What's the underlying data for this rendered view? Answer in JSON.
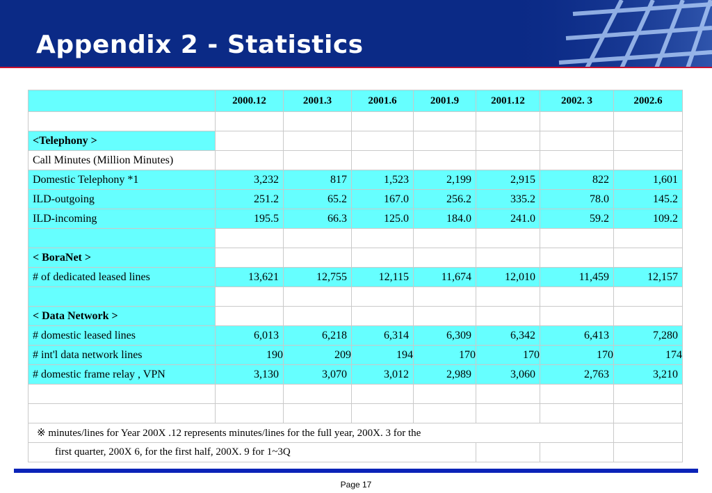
{
  "slide": {
    "title": "Appendix 2 - Statistics",
    "page_label": "Page 17",
    "colors": {
      "banner": "#0b2a86",
      "accent_line": "#c8102e",
      "highlight": "#66ffff",
      "footer_bar": "#0b23b8"
    }
  },
  "table": {
    "columns": [
      "2000.12",
      "2001.3",
      "2001.6",
      "2001.9",
      "2001.12",
      "2002. 3",
      "2002.6"
    ],
    "telephony": {
      "section": "<Telephony >",
      "unit": "Call Minutes   (Million Minutes)",
      "rows": [
        {
          "label": "Domestic Telephony *1",
          "values": [
            "3,232",
            "817",
            "1,523",
            "2,199",
            "2,915",
            "822",
            "1,601"
          ]
        },
        {
          "label": "ILD-outgoing",
          "values": [
            "251.2",
            "65.2",
            "167.0",
            "256.2",
            "335.2",
            "78.0",
            "145.2"
          ]
        },
        {
          "label": "ILD-incoming",
          "values": [
            "195.5",
            "66.3",
            "125.0",
            "184.0",
            "241.0",
            "59.2",
            "109.2"
          ]
        }
      ]
    },
    "boranet": {
      "section": "< BoraNet >",
      "rows": [
        {
          "label": "# of dedicated leased lines",
          "values": [
            "13,621",
            "12,755",
            "12,115",
            "11,674",
            "12,010",
            "11,459",
            "12,157"
          ]
        }
      ]
    },
    "data_network": {
      "section": "< Data Network >",
      "rows": [
        {
          "label": "# domestic leased lines",
          "values": [
            "6,013",
            "6,218",
            "6,314",
            "6,309",
            "6,342",
            "6,413",
            "7,280"
          ]
        },
        {
          "label": "# int'l data network lines",
          "values": [
            "190",
            "209",
            "194",
            "170",
            "170",
            "170",
            "174"
          ]
        },
        {
          "label": "# domestic frame relay , VPN",
          "values": [
            "3,130",
            "3,070",
            "3,012",
            "2,989",
            "3,060",
            "2,763",
            "3,210"
          ]
        }
      ]
    },
    "note": {
      "line1": "※  minutes/lines for Year 200X .12 represents minutes/lines for the full year,  200X. 3 for the",
      "line2": "first quarter, 200X 6, for the first half,  200X. 9 for 1~3Q"
    }
  }
}
